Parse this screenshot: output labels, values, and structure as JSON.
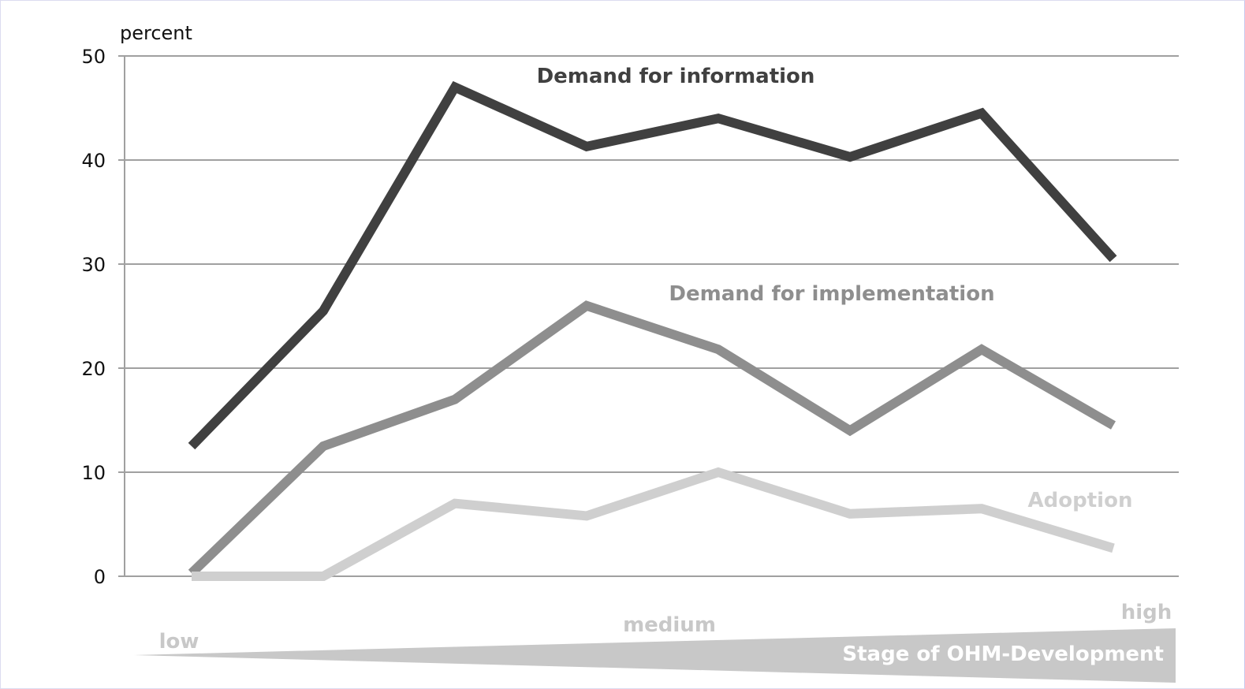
{
  "chart_data": {
    "type": "line",
    "ylabel": "percent",
    "ylim": [
      0,
      50
    ],
    "yticks": [
      0,
      10,
      20,
      30,
      40,
      50
    ],
    "grid": true,
    "x": [
      1,
      2,
      3,
      4,
      5,
      6,
      7,
      8
    ],
    "series": [
      {
        "name": "Demand for information",
        "color": "#404040",
        "values": [
          12.5,
          25.5,
          47.0,
          41.3,
          44.0,
          40.3,
          44.5,
          30.5
        ]
      },
      {
        "name": "Demand for implementation",
        "color": "#8e8e8e",
        "values": [
          0.3,
          12.5,
          17.0,
          26.0,
          21.8,
          14.0,
          21.8,
          14.5
        ]
      },
      {
        "name": "Adoption",
        "color": "#cfcfcf",
        "values": [
          0.0,
          0.0,
          7.0,
          5.8,
          10.0,
          6.0,
          6.5,
          2.7
        ]
      }
    ],
    "x_axis_graphic": {
      "low_label": "low",
      "medium_label": "medium",
      "high_label": "high",
      "caption": "Stage of OHM-Development",
      "color": "#c8c8c8"
    }
  }
}
